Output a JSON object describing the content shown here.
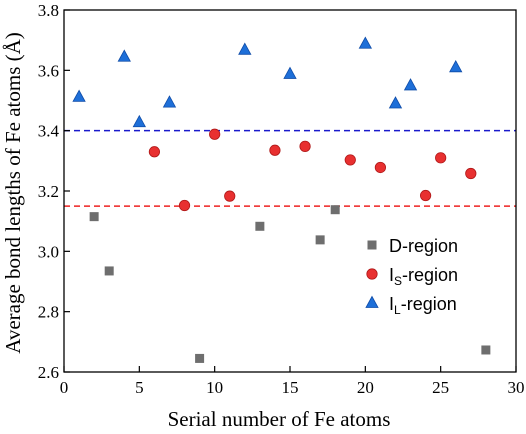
{
  "chart_data": {
    "type": "scatter",
    "xlabel": "Serial number of Fe atoms",
    "ylabel": "Average bond lengths of Fe atoms (Å)",
    "xlim": [
      0,
      30
    ],
    "ylim": [
      2.6,
      3.8
    ],
    "xticks": [
      0,
      5,
      10,
      15,
      20,
      25,
      30
    ],
    "yticks": [
      2.6,
      2.8,
      3.0,
      3.2,
      3.4,
      3.6,
      3.8
    ],
    "grid": false,
    "legend_position": "bottom-right",
    "reference_lines": [
      {
        "y": 3.4,
        "color": "#1a1acc",
        "style": "dashed"
      },
      {
        "y": 3.15,
        "color": "#ee2222",
        "style": "dashed"
      }
    ],
    "series": [
      {
        "name": "D-region",
        "legend": {
          "main": "D-region",
          "sub": "",
          "suffix": ""
        },
        "marker": "square",
        "color": "#6e6e6e",
        "points": [
          [
            2,
            3.115
          ],
          [
            3,
            2.935
          ],
          [
            9,
            2.645
          ],
          [
            13,
            3.083
          ],
          [
            17,
            3.038
          ],
          [
            18,
            3.138
          ],
          [
            28,
            2.673
          ]
        ]
      },
      {
        "name": "IS-region",
        "legend": {
          "main": "I",
          "sub": "S",
          "suffix": "-region"
        },
        "marker": "circle",
        "color": "#e83030",
        "points": [
          [
            6,
            3.33
          ],
          [
            8,
            3.152
          ],
          [
            10,
            3.388
          ],
          [
            11,
            3.183
          ],
          [
            14,
            3.335
          ],
          [
            16,
            3.348
          ],
          [
            19,
            3.303
          ],
          [
            21,
            3.278
          ],
          [
            24,
            3.185
          ],
          [
            25,
            3.31
          ],
          [
            27,
            3.258
          ]
        ]
      },
      {
        "name": "IL-region",
        "legend": {
          "main": "I",
          "sub": "L",
          "suffix": "-region"
        },
        "marker": "triangle",
        "color": "#1e6fd8",
        "points": [
          [
            1,
            3.512
          ],
          [
            4,
            3.645
          ],
          [
            5,
            3.428
          ],
          [
            7,
            3.493
          ],
          [
            12,
            3.668
          ],
          [
            15,
            3.588
          ],
          [
            20,
            3.688
          ],
          [
            22,
            3.49
          ],
          [
            23,
            3.55
          ],
          [
            26,
            3.61
          ]
        ]
      }
    ]
  }
}
